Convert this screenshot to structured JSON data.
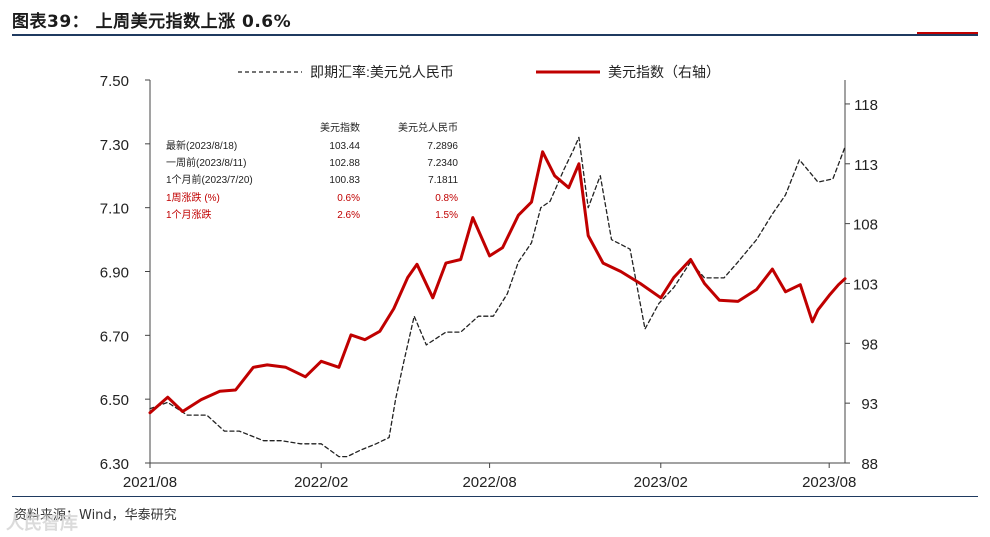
{
  "header": {
    "title": "图表39： 上周美元指数上涨 0.6%"
  },
  "footer": {
    "source": "资料来源：Wind，华泰研究",
    "watermark": "人民智库"
  },
  "colors": {
    "usd_index": "#c00000",
    "usdcny": "#222222",
    "title_rule": "#1f3a60",
    "summary_red": "#c00000"
  },
  "summary_table": {
    "headers": [
      "美元指数",
      "美元兑人民币"
    ],
    "rows": [
      {
        "label": "最新(2023/8/18)",
        "values": [
          "103.44",
          "7.2896"
        ],
        "highlight": false
      },
      {
        "label": "一周前(2023/8/11)",
        "values": [
          "102.88",
          "7.2340"
        ],
        "highlight": false
      },
      {
        "label": "1个月前(2023/7/20)",
        "values": [
          "100.83",
          "7.1811"
        ],
        "highlight": false
      },
      {
        "label": "1周涨跌 (%)",
        "values": [
          "0.6%",
          "0.8%"
        ],
        "highlight": true
      },
      {
        "label": "1个月涨跌",
        "values": [
          "2.6%",
          "1.5%"
        ],
        "highlight": true
      }
    ]
  },
  "chart_data": {
    "type": "line",
    "legend_placement": "top",
    "grid": false,
    "x_axis": {
      "range": [
        "2021-08-01",
        "2023-08-18"
      ],
      "ticks": [
        "2021/08",
        "2022/02",
        "2022/08",
        "2023/02",
        "2023/08"
      ],
      "tick_dates": [
        "2021-08-01",
        "2022-02-01",
        "2022-08-01",
        "2023-02-01",
        "2023-08-01"
      ]
    },
    "y_left": {
      "range": [
        6.3,
        7.5
      ],
      "ticks": [
        "6.30",
        "6.50",
        "6.70",
        "6.90",
        "7.10",
        "7.30",
        "7.50"
      ]
    },
    "y_right": {
      "range": [
        88,
        120
      ],
      "ticks": [
        "88",
        "93",
        "98",
        "103",
        "108",
        "113",
        "118"
      ]
    },
    "series": [
      {
        "name": "即期汇率:美元兑人民币",
        "axis": "left",
        "style": "dashed",
        "points": [
          [
            "2021-08-01",
            6.47
          ],
          [
            "2021-08-20",
            6.49
          ],
          [
            "2021-09-10",
            6.45
          ],
          [
            "2021-10-01",
            6.45
          ],
          [
            "2021-10-20",
            6.4
          ],
          [
            "2021-11-05",
            6.4
          ],
          [
            "2021-12-01",
            6.37
          ],
          [
            "2021-12-20",
            6.37
          ],
          [
            "2022-01-10",
            6.36
          ],
          [
            "2022-02-01",
            6.36
          ],
          [
            "2022-02-20",
            6.32
          ],
          [
            "2022-03-01",
            6.32
          ],
          [
            "2022-03-15",
            6.34
          ],
          [
            "2022-04-01",
            6.36
          ],
          [
            "2022-04-15",
            6.38
          ],
          [
            "2022-04-22",
            6.5
          ],
          [
            "2022-05-01",
            6.62
          ],
          [
            "2022-05-12",
            6.76
          ],
          [
            "2022-05-25",
            6.67
          ],
          [
            "2022-06-15",
            6.71
          ],
          [
            "2022-07-01",
            6.71
          ],
          [
            "2022-07-20",
            6.76
          ],
          [
            "2022-08-05",
            6.76
          ],
          [
            "2022-08-20",
            6.83
          ],
          [
            "2022-09-01",
            6.93
          ],
          [
            "2022-09-15",
            6.99
          ],
          [
            "2022-09-25",
            7.1
          ],
          [
            "2022-10-05",
            7.12
          ],
          [
            "2022-10-20",
            7.22
          ],
          [
            "2022-10-30",
            7.28
          ],
          [
            "2022-11-05",
            7.32
          ],
          [
            "2022-11-15",
            7.1
          ],
          [
            "2022-11-28",
            7.2
          ],
          [
            "2022-12-10",
            7.0
          ],
          [
            "2022-12-30",
            6.97
          ],
          [
            "2023-01-15",
            6.72
          ],
          [
            "2023-01-30",
            6.8
          ],
          [
            "2023-02-15",
            6.85
          ],
          [
            "2023-03-05",
            6.93
          ],
          [
            "2023-03-20",
            6.88
          ],
          [
            "2023-04-10",
            6.88
          ],
          [
            "2023-04-25",
            6.93
          ],
          [
            "2023-05-15",
            7.0
          ],
          [
            "2023-06-01",
            7.08
          ],
          [
            "2023-06-15",
            7.14
          ],
          [
            "2023-06-30",
            7.25
          ],
          [
            "2023-07-20",
            7.18
          ],
          [
            "2023-08-05",
            7.19
          ],
          [
            "2023-08-18",
            7.29
          ]
        ]
      },
      {
        "name": "美元指数（右轴）",
        "axis": "right",
        "style": "solid",
        "points": [
          [
            "2021-08-01",
            92.2
          ],
          [
            "2021-08-20",
            93.5
          ],
          [
            "2021-09-05",
            92.3
          ],
          [
            "2021-09-25",
            93.3
          ],
          [
            "2021-10-15",
            94.0
          ],
          [
            "2021-11-01",
            94.1
          ],
          [
            "2021-11-20",
            96.0
          ],
          [
            "2021-12-05",
            96.2
          ],
          [
            "2021-12-25",
            96.0
          ],
          [
            "2022-01-15",
            95.2
          ],
          [
            "2022-02-01",
            96.5
          ],
          [
            "2022-02-20",
            96.0
          ],
          [
            "2022-03-05",
            98.7
          ],
          [
            "2022-03-20",
            98.3
          ],
          [
            "2022-04-05",
            99.0
          ],
          [
            "2022-04-20",
            100.9
          ],
          [
            "2022-05-05",
            103.5
          ],
          [
            "2022-05-15",
            104.6
          ],
          [
            "2022-06-01",
            101.8
          ],
          [
            "2022-06-15",
            104.7
          ],
          [
            "2022-07-01",
            105.0
          ],
          [
            "2022-07-14",
            108.5
          ],
          [
            "2022-08-01",
            105.3
          ],
          [
            "2022-08-15",
            106.0
          ],
          [
            "2022-09-01",
            108.7
          ],
          [
            "2022-09-15",
            109.8
          ],
          [
            "2022-09-27",
            114.0
          ],
          [
            "2022-10-10",
            112.0
          ],
          [
            "2022-10-25",
            111.0
          ],
          [
            "2022-11-05",
            113.0
          ],
          [
            "2022-11-15",
            107.0
          ],
          [
            "2022-12-01",
            104.7
          ],
          [
            "2022-12-20",
            104.0
          ],
          [
            "2023-01-10",
            103.0
          ],
          [
            "2023-02-01",
            101.8
          ],
          [
            "2023-02-15",
            103.5
          ],
          [
            "2023-03-05",
            105.0
          ],
          [
            "2023-03-20",
            103.0
          ],
          [
            "2023-04-05",
            101.6
          ],
          [
            "2023-04-25",
            101.5
          ],
          [
            "2023-05-15",
            102.5
          ],
          [
            "2023-06-01",
            104.2
          ],
          [
            "2023-06-15",
            102.3
          ],
          [
            "2023-07-01",
            102.9
          ],
          [
            "2023-07-14",
            99.8
          ],
          [
            "2023-07-20",
            100.8
          ],
          [
            "2023-08-01",
            102.0
          ],
          [
            "2023-08-11",
            102.9
          ],
          [
            "2023-08-18",
            103.4
          ]
        ]
      }
    ]
  }
}
